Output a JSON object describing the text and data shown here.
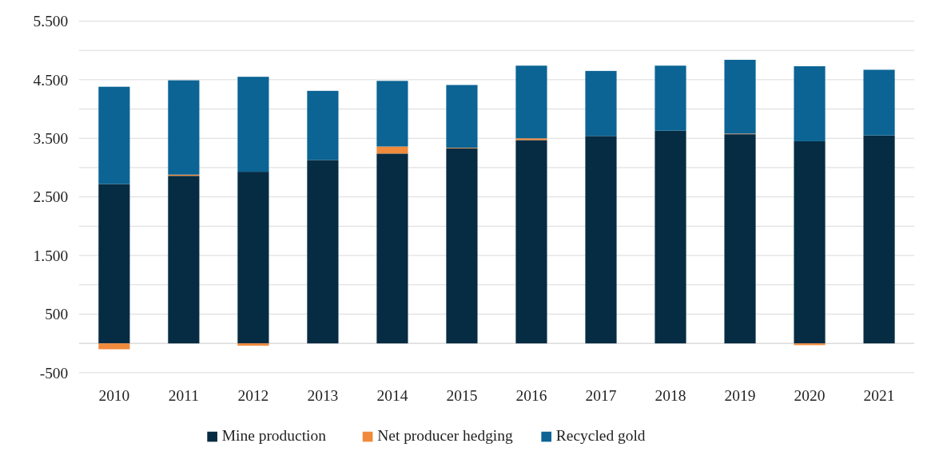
{
  "chart_data": {
    "type": "bar",
    "stacked": true,
    "categories": [
      "2010",
      "2011",
      "2012",
      "2013",
      "2014",
      "2015",
      "2016",
      "2017",
      "2018",
      "2019",
      "2020",
      "2021"
    ],
    "series": [
      {
        "name": "Mine production",
        "color": "#062c43",
        "values": [
          2720,
          2860,
          2930,
          3130,
          3240,
          3330,
          3470,
          3540,
          3630,
          3570,
          3450,
          3550
        ]
      },
      {
        "name": "Net producer hedging",
        "color": "#f08a3c",
        "values": [
          -100,
          20,
          -40,
          0,
          120,
          10,
          30,
          0,
          0,
          10,
          -30,
          0
        ]
      },
      {
        "name": "Recycled gold",
        "color": "#0b6494",
        "values": [
          1660,
          1610,
          1620,
          1180,
          1120,
          1070,
          1240,
          1110,
          1110,
          1260,
          1280,
          1120
        ]
      }
    ],
    "ylim": [
      -500,
      5500
    ],
    "yticks": [
      {
        "value": -500,
        "label": "-500"
      },
      {
        "value": 0,
        "label": null
      },
      {
        "value": 500,
        "label": "500"
      },
      {
        "value": 1000,
        "label": null
      },
      {
        "value": 1500,
        "label": "1.500"
      },
      {
        "value": 2000,
        "label": null
      },
      {
        "value": 2500,
        "label": "2.500"
      },
      {
        "value": 3000,
        "label": null
      },
      {
        "value": 3500,
        "label": "3.500"
      },
      {
        "value": 4000,
        "label": null
      },
      {
        "value": 4500,
        "label": "4.500"
      },
      {
        "value": 5000,
        "label": null
      },
      {
        "value": 5500,
        "label": "5.500"
      }
    ],
    "grid": "y",
    "legend": "bottom"
  }
}
